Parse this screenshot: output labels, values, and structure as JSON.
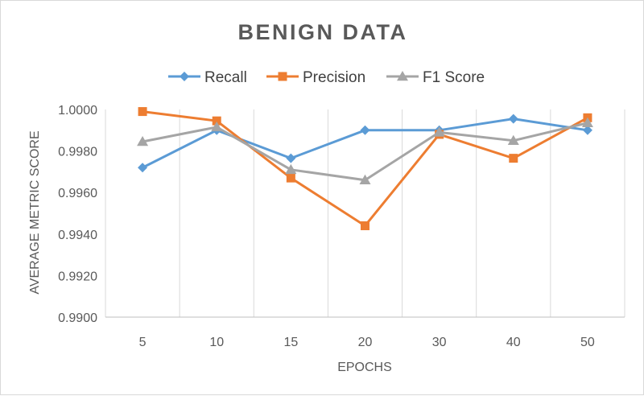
{
  "chart_data": {
    "type": "line",
    "title": "BENIGN DATA",
    "xlabel": "EPOCHS",
    "ylabel": "AVERAGE METRIC SCORE",
    "categories": [
      "5",
      "10",
      "15",
      "20",
      "30",
      "40",
      "50"
    ],
    "ylim": [
      0.99,
      1.0
    ],
    "yticks": [
      "0.9900",
      "0.9920",
      "0.9940",
      "0.9960",
      "0.9980",
      "1.0000"
    ],
    "grid": "vertical",
    "legend": "top",
    "series": [
      {
        "name": "Recall",
        "marker": "diamond",
        "color": "#5b9bd5",
        "values": [
          0.9972,
          0.999,
          0.99765,
          0.999,
          0.999,
          0.99955,
          0.999
        ]
      },
      {
        "name": "Precision",
        "marker": "square",
        "color": "#ed7d31",
        "values": [
          0.9999,
          0.99945,
          0.9967,
          0.9944,
          0.9988,
          0.99765,
          0.9996
        ]
      },
      {
        "name": "F1 Score",
        "marker": "triangle",
        "color": "#a5a5a5",
        "values": [
          0.99845,
          0.99915,
          0.9971,
          0.9966,
          0.9989,
          0.9985,
          0.99935
        ]
      }
    ]
  }
}
